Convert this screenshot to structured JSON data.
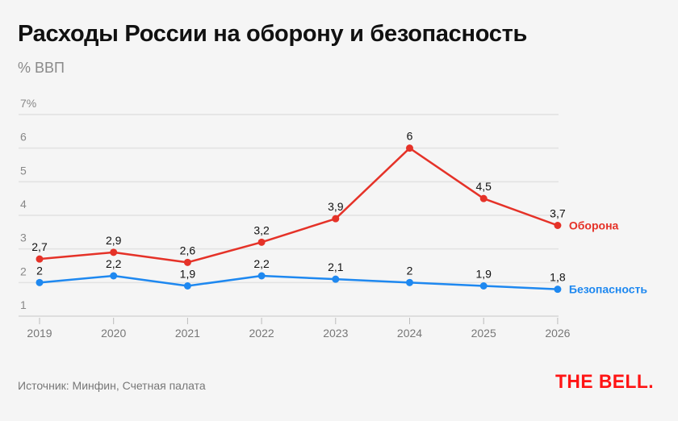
{
  "chart_data": {
    "type": "line",
    "title": "Расходы России на оборону и безопасность",
    "ylabel": "% ВВП",
    "ylim": [
      1,
      7
    ],
    "yticks": [
      "1",
      "2",
      "3",
      "4",
      "5",
      "6",
      "7%"
    ],
    "categories": [
      "2019",
      "2020",
      "2021",
      "2022",
      "2023",
      "2024",
      "2025",
      "2026"
    ],
    "grid": true,
    "series": [
      {
        "name": "Оборона",
        "color": "#e53228",
        "values": [
          2.7,
          2.9,
          2.6,
          3.2,
          3.9,
          6,
          4.5,
          3.7
        ],
        "labels": [
          "2,7",
          "2,9",
          "2,6",
          "3,2",
          "3,9",
          "6",
          "4,5",
          "3,7"
        ]
      },
      {
        "name": "Безопасность",
        "color": "#1e88f0",
        "values": [
          2,
          2.2,
          1.9,
          2.2,
          2.1,
          2,
          1.9,
          1.8
        ],
        "labels": [
          "2",
          "2,2",
          "1,9",
          "2,2",
          "2,1",
          "2",
          "1,9",
          "1,8"
        ]
      }
    ]
  },
  "source": "Источник: Минфин, Счетная палата",
  "logo": "THE BELL."
}
